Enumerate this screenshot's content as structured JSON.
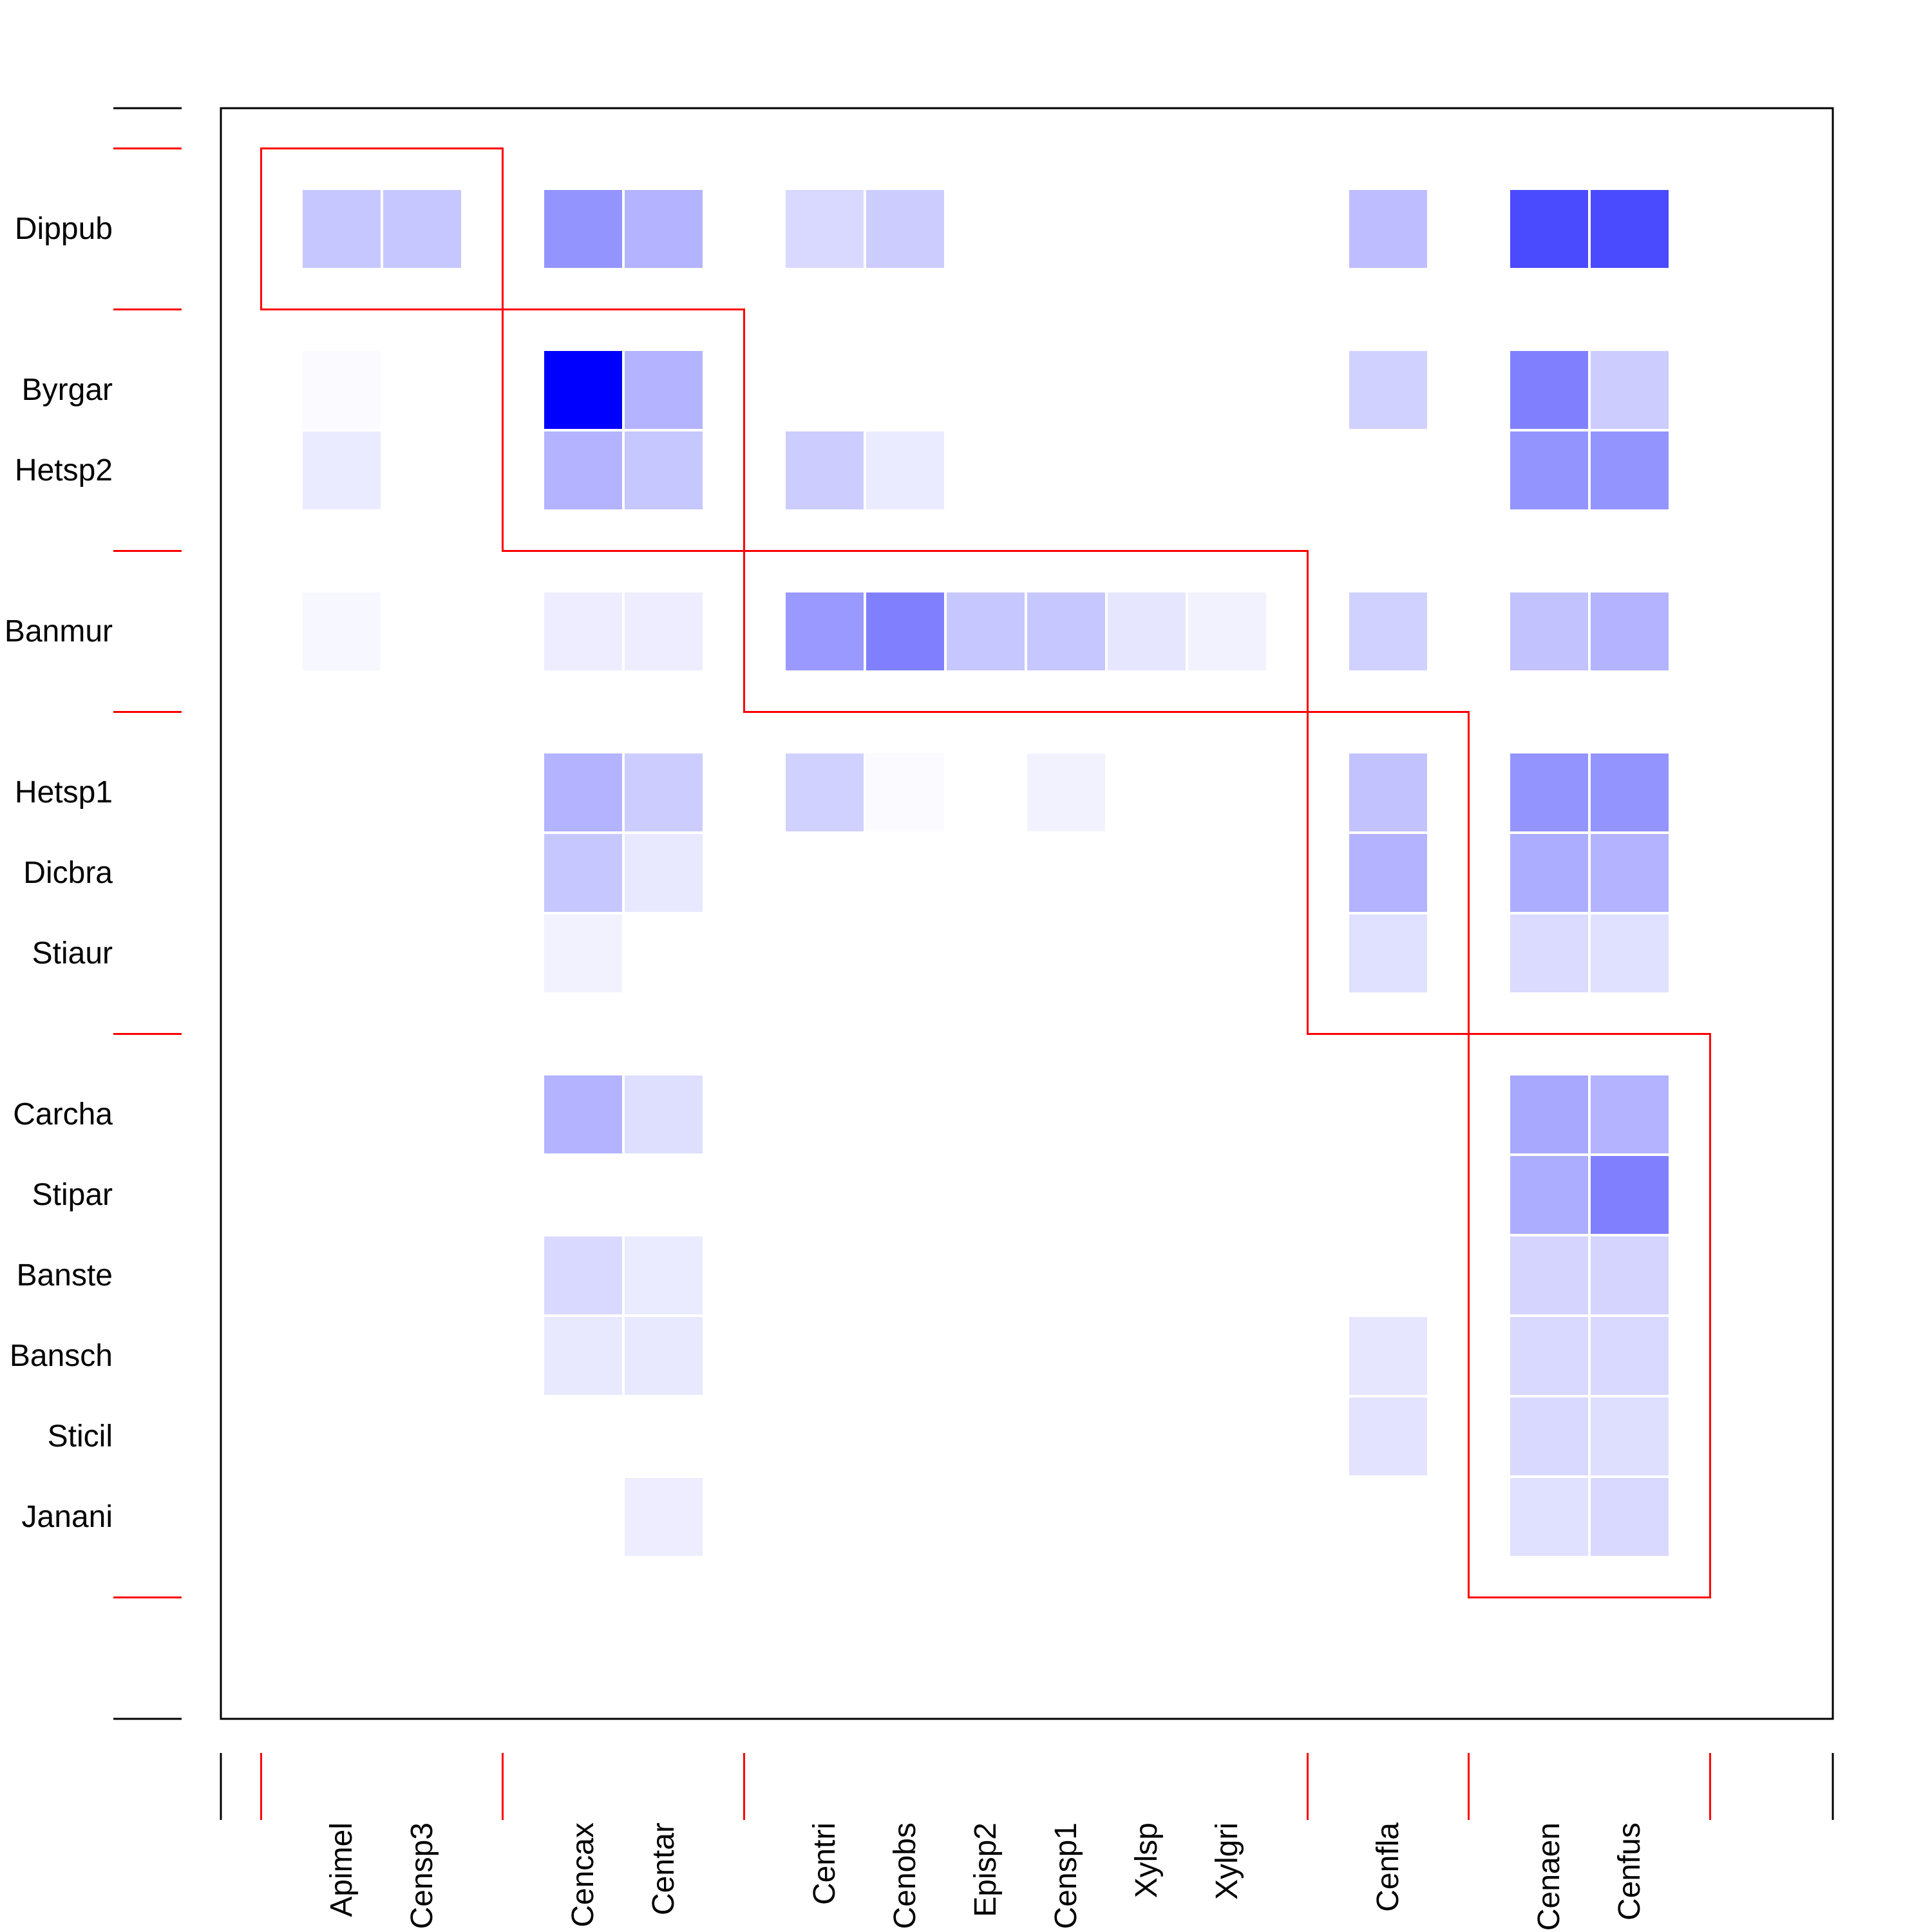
{
  "chart_data": {
    "type": "heatmap",
    "title": "",
    "xlabel": "",
    "ylabel": "",
    "rows": [
      "Dippub",
      "Byrgar",
      "Hetsp2",
      "Banmur",
      "Hetsp1",
      "Dicbra",
      "Stiaur",
      "Carcha",
      "Stipar",
      "Banste",
      "Bansch",
      "Sticil",
      "Janani"
    ],
    "columns": [
      "Apimel",
      "Censp3",
      "Cencax",
      "Centar",
      "Centri",
      "Cenobs",
      "Episp2",
      "Censp1",
      "Xylsp",
      "Xylgri",
      "Cenfla",
      "Cenaen",
      "Cenfus"
    ],
    "value_range": [
      0,
      1
    ],
    "values": [
      [
        0.22,
        0.22,
        0.42,
        0.3,
        0.15,
        0.2,
        0,
        0,
        0,
        0,
        0.26,
        0.71,
        0.71
      ],
      [
        0.02,
        0,
        1.0,
        0.3,
        0,
        0,
        0,
        0,
        0,
        0,
        0.18,
        0.5,
        0.2
      ],
      [
        0.08,
        0,
        0.3,
        0.22,
        0.2,
        0.08,
        0,
        0,
        0,
        0,
        0,
        0.42,
        0.42
      ],
      [
        0.03,
        0,
        0.07,
        0.07,
        0.4,
        0.5,
        0.22,
        0.22,
        0.1,
        0.05,
        0.18,
        0.24,
        0.3
      ],
      [
        0,
        0,
        0.3,
        0.2,
        0.18,
        0.02,
        0,
        0.05,
        0,
        0,
        0.24,
        0.42,
        0.42
      ],
      [
        0,
        0,
        0.22,
        0.09,
        0,
        0,
        0,
        0,
        0,
        0,
        0.3,
        0.32,
        0.3
      ],
      [
        0,
        0,
        0.05,
        0,
        0,
        0,
        0,
        0,
        0,
        0,
        0.12,
        0.14,
        0.12
      ],
      [
        0,
        0,
        0.3,
        0.13,
        0,
        0,
        0,
        0,
        0,
        0,
        0,
        0.34,
        0.3
      ],
      [
        0,
        0,
        0,
        0,
        0,
        0,
        0,
        0,
        0,
        0,
        0,
        0.32,
        0.5
      ],
      [
        0,
        0,
        0.15,
        0.08,
        0,
        0,
        0,
        0,
        0,
        0,
        0,
        0.17,
        0.17
      ],
      [
        0,
        0,
        0.09,
        0.09,
        0,
        0,
        0,
        0,
        0,
        0,
        0.1,
        0.15,
        0.15
      ],
      [
        0,
        0,
        0,
        0,
        0,
        0,
        0,
        0,
        0,
        0,
        0.11,
        0.15,
        0.13
      ],
      [
        0,
        0,
        0,
        0.07,
        0,
        0,
        0,
        0,
        0,
        0,
        0,
        0.12,
        0.15
      ]
    ],
    "row_groups": [
      {
        "start": 0,
        "end": 0
      },
      {
        "start": 1,
        "end": 2
      },
      {
        "start": 3,
        "end": 3
      },
      {
        "start": 4,
        "end": 6
      },
      {
        "start": 7,
        "end": 12
      }
    ],
    "column_groups": [
      {
        "start": 0,
        "end": 1
      },
      {
        "start": 2,
        "end": 3
      },
      {
        "start": 4,
        "end": 9
      },
      {
        "start": 10,
        "end": 10
      },
      {
        "start": 11,
        "end": 12
      }
    ],
    "module_boxes": [
      {
        "rows": [
          0,
          0
        ],
        "columns": [
          0,
          1
        ]
      },
      {
        "rows": [
          1,
          2
        ],
        "columns": [
          2,
          3
        ]
      },
      {
        "rows": [
          3,
          3
        ],
        "columns": [
          4,
          9
        ]
      },
      {
        "rows": [
          4,
          6
        ],
        "columns": [
          10,
          10
        ]
      },
      {
        "rows": [
          7,
          12
        ],
        "columns": [
          11,
          12
        ]
      }
    ],
    "colors": {
      "cell_max": "#0000ff",
      "cell_min": "#ffffff",
      "module_border": "#ff0000",
      "frame": "#000000"
    },
    "grid": false,
    "legend": "none"
  }
}
